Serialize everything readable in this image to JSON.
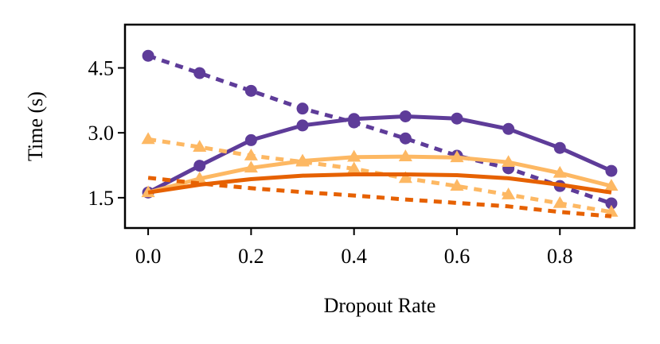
{
  "chart_data": {
    "type": "line",
    "title": "",
    "xlabel": "Dropout Rate",
    "ylabel": "Time (s)",
    "xlim": [
      -0.045,
      0.945
    ],
    "ylim": [
      0.8,
      5.5
    ],
    "xticks": [
      0.0,
      0.2,
      0.4,
      0.6,
      0.8
    ],
    "xtick_labels": [
      "0.0",
      "0.2",
      "0.4",
      "0.6",
      "0.8"
    ],
    "yticks": [
      1.5,
      3.0,
      4.5
    ],
    "ytick_labels": [
      "1.5",
      "3.0",
      "4.5"
    ],
    "grid": false,
    "x": [
      0.0,
      0.1,
      0.2,
      0.3,
      0.4,
      0.5,
      0.6,
      0.7,
      0.8,
      0.9
    ],
    "series": [
      {
        "name": "purple-solid",
        "color": "#5e3c99",
        "style": "solid",
        "marker": "circle",
        "values": [
          1.62,
          2.24,
          2.83,
          3.17,
          3.32,
          3.38,
          3.33,
          3.09,
          2.65,
          2.12
        ]
      },
      {
        "name": "purple-dashed",
        "color": "#5e3c99",
        "style": "dashed",
        "marker": "circle",
        "values": [
          4.78,
          4.38,
          3.97,
          3.56,
          3.24,
          2.87,
          2.47,
          2.18,
          1.77,
          1.37
        ]
      },
      {
        "name": "light-orange-solid",
        "color": "#fdb863",
        "style": "solid",
        "marker": "triangle",
        "values": [
          1.62,
          1.94,
          2.19,
          2.35,
          2.44,
          2.45,
          2.43,
          2.32,
          2.07,
          1.77
        ]
      },
      {
        "name": "light-orange-dashed",
        "color": "#fdb863",
        "style": "dashed",
        "marker": "triangle",
        "values": [
          2.85,
          2.67,
          2.47,
          2.33,
          2.17,
          1.95,
          1.77,
          1.57,
          1.37,
          1.17
        ]
      },
      {
        "name": "dark-orange-solid",
        "color": "#e66101",
        "style": "solid",
        "marker": "none",
        "values": [
          1.62,
          1.8,
          1.93,
          2.01,
          2.04,
          2.04,
          2.02,
          1.95,
          1.8,
          1.62
        ]
      },
      {
        "name": "dark-orange-dashed",
        "color": "#e66101",
        "style": "dashed",
        "marker": "none",
        "values": [
          1.96,
          1.83,
          1.72,
          1.63,
          1.55,
          1.46,
          1.38,
          1.3,
          1.17,
          1.07
        ]
      }
    ]
  }
}
